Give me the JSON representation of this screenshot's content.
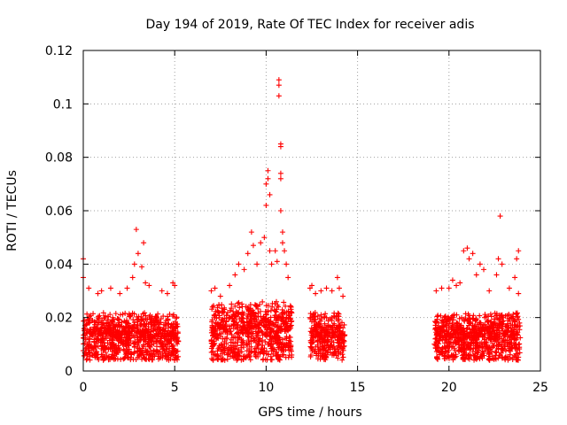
{
  "chart_data": {
    "type": "scatter",
    "title": "Day 194 of 2019, Rate Of TEC Index for receiver adis",
    "xlabel": "GPS time / hours",
    "ylabel": "ROTI / TECUs",
    "xlim": [
      0,
      25
    ],
    "ylim": [
      0,
      0.12
    ],
    "xticks": [
      0,
      5,
      10,
      15,
      20,
      25
    ],
    "xtick_labels": [
      "0",
      "5",
      "10",
      "15",
      "20",
      "25"
    ],
    "yticks": [
      0,
      0.02,
      0.04,
      0.06,
      0.08,
      0.1,
      0.12
    ],
    "ytick_labels": [
      "0",
      "0.02",
      "0.04",
      "0.06",
      "0.08",
      "0.1",
      "0.12"
    ],
    "grid": true,
    "marker": "+",
    "color": "#ff0000",
    "series": [
      {
        "name": "ROTI",
        "dense_segments": [
          {
            "x_start": 0.0,
            "x_end": 5.2,
            "y_min": 0.004,
            "y_max": 0.022
          },
          {
            "x_start": 7.0,
            "x_end": 11.4,
            "y_min": 0.004,
            "y_max": 0.026
          },
          {
            "x_start": 12.4,
            "x_end": 14.3,
            "y_min": 0.004,
            "y_max": 0.022
          },
          {
            "x_start": 19.2,
            "x_end": 23.9,
            "y_min": 0.004,
            "y_max": 0.022
          }
        ],
        "points": [
          [
            0.0,
            0.042
          ],
          [
            0.0,
            0.035
          ],
          [
            0.3,
            0.031
          ],
          [
            0.8,
            0.029
          ],
          [
            1.0,
            0.03
          ],
          [
            1.5,
            0.031
          ],
          [
            2.0,
            0.029
          ],
          [
            2.4,
            0.031
          ],
          [
            2.7,
            0.035
          ],
          [
            2.8,
            0.04
          ],
          [
            2.9,
            0.053
          ],
          [
            3.0,
            0.044
          ],
          [
            3.2,
            0.039
          ],
          [
            3.3,
            0.048
          ],
          [
            3.4,
            0.033
          ],
          [
            3.6,
            0.032
          ],
          [
            4.3,
            0.03
          ],
          [
            4.6,
            0.029
          ],
          [
            4.9,
            0.033
          ],
          [
            5.0,
            0.032
          ],
          [
            7.0,
            0.03
          ],
          [
            7.2,
            0.031
          ],
          [
            7.5,
            0.028
          ],
          [
            8.0,
            0.032
          ],
          [
            8.3,
            0.036
          ],
          [
            8.5,
            0.04
          ],
          [
            8.8,
            0.038
          ],
          [
            9.0,
            0.044
          ],
          [
            9.2,
            0.052
          ],
          [
            9.3,
            0.047
          ],
          [
            9.5,
            0.04
          ],
          [
            9.7,
            0.048
          ],
          [
            9.9,
            0.05
          ],
          [
            10.0,
            0.062
          ],
          [
            10.0,
            0.07
          ],
          [
            10.1,
            0.075
          ],
          [
            10.1,
            0.072
          ],
          [
            10.2,
            0.066
          ],
          [
            10.2,
            0.045
          ],
          [
            10.3,
            0.04
          ],
          [
            10.5,
            0.045
          ],
          [
            10.6,
            0.041
          ],
          [
            10.7,
            0.103
          ],
          [
            10.7,
            0.107
          ],
          [
            10.7,
            0.109
          ],
          [
            10.8,
            0.085
          ],
          [
            10.8,
            0.084
          ],
          [
            10.8,
            0.074
          ],
          [
            10.8,
            0.072
          ],
          [
            10.8,
            0.06
          ],
          [
            10.9,
            0.052
          ],
          [
            10.9,
            0.048
          ],
          [
            11.0,
            0.045
          ],
          [
            11.1,
            0.04
          ],
          [
            11.2,
            0.035
          ],
          [
            12.4,
            0.031
          ],
          [
            12.5,
            0.032
          ],
          [
            12.7,
            0.029
          ],
          [
            13.0,
            0.03
          ],
          [
            13.3,
            0.031
          ],
          [
            13.6,
            0.03
          ],
          [
            13.9,
            0.035
          ],
          [
            14.0,
            0.031
          ],
          [
            14.2,
            0.028
          ],
          [
            19.3,
            0.03
          ],
          [
            19.6,
            0.031
          ],
          [
            20.0,
            0.031
          ],
          [
            20.2,
            0.034
          ],
          [
            20.4,
            0.032
          ],
          [
            20.6,
            0.033
          ],
          [
            20.8,
            0.045
          ],
          [
            21.0,
            0.046
          ],
          [
            21.1,
            0.042
          ],
          [
            21.3,
            0.044
          ],
          [
            21.5,
            0.036
          ],
          [
            21.7,
            0.04
          ],
          [
            21.9,
            0.038
          ],
          [
            22.2,
            0.03
          ],
          [
            22.6,
            0.036
          ],
          [
            22.7,
            0.042
          ],
          [
            22.8,
            0.058
          ],
          [
            22.9,
            0.04
          ],
          [
            23.3,
            0.031
          ],
          [
            23.6,
            0.035
          ],
          [
            23.7,
            0.042
          ],
          [
            23.8,
            0.045
          ],
          [
            23.8,
            0.029
          ]
        ]
      }
    ]
  }
}
